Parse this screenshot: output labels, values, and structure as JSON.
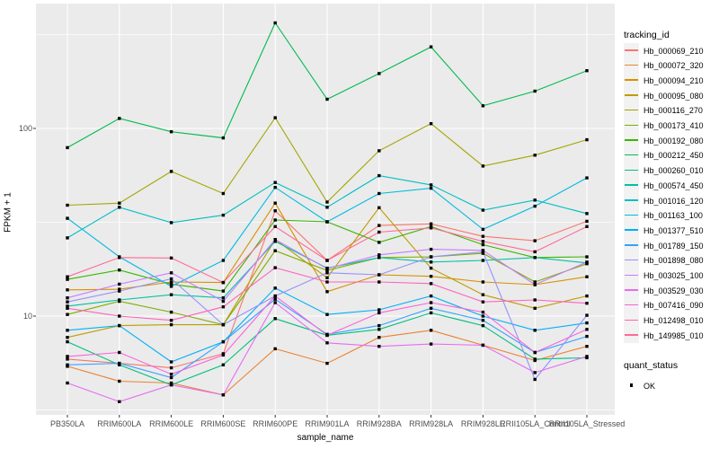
{
  "chart_data": {
    "type": "line",
    "xlabel": "sample_name",
    "ylabel": "FPKM + 1",
    "y_scale": "log10",
    "y_ticks": [
      {
        "value": 10,
        "label": "10"
      },
      {
        "value": 100,
        "label": "100"
      }
    ],
    "y_minor_ticks": [
      3.16,
      31.6,
      316
    ],
    "ylim": [
      3.0,
      460
    ],
    "grid": "on",
    "legend_position": "right",
    "panel_background": "#EBEBEB",
    "grid_color": "#FFFFFF",
    "marker": {
      "shape": "square",
      "color": "#000000"
    },
    "legend_tracking_title": "tracking_id",
    "legend_quant_title": "quant_status",
    "quant_items": [
      {
        "label": "OK"
      }
    ],
    "categories": [
      "PB350LA",
      "RRIM600LA",
      "RRIM600LE",
      "RRIM600SE",
      "RRIM600PE",
      "RRIM901LA",
      "RRIM928BA",
      "RRIM928LA",
      "RRIM928LE",
      "RRII105LA_Control",
      "RRII105LA_Stressed"
    ],
    "series": [
      {
        "name": "Hb_000069_210",
        "color": "#F8766D",
        "values": [
          5.9,
          5.6,
          5.3,
          6.3,
          36.4,
          19.8,
          30.4,
          31.0,
          26.6,
          25.2,
          32.0
        ]
      },
      {
        "name": "Hb_000072_320",
        "color": "#EA8331",
        "values": [
          5.4,
          4.5,
          4.4,
          3.8,
          6.7,
          5.6,
          7.7,
          8.4,
          7.0,
          5.8,
          6.9
        ]
      },
      {
        "name": "Hb_000094_210",
        "color": "#D89000",
        "values": [
          13.8,
          13.9,
          15.2,
          15.1,
          40.0,
          13.5,
          16.6,
          16.3,
          15.2,
          14.7,
          16.2
        ]
      },
      {
        "name": "Hb_000095_080",
        "color": "#C09B00",
        "values": [
          7.7,
          8.9,
          9.0,
          9.0,
          25.6,
          16.0,
          37.8,
          18.0,
          13.0,
          11.0,
          12.8
        ]
      },
      {
        "name": "Hb_000116_270",
        "color": "#A3A500",
        "values": [
          39.0,
          40.0,
          59.0,
          45.0,
          114.0,
          40.5,
          76.0,
          106.0,
          63.0,
          72.0,
          87.0
        ]
      },
      {
        "name": "Hb_000173_410",
        "color": "#7CAE00",
        "values": [
          10.2,
          12.0,
          10.5,
          9.0,
          22.3,
          17.5,
          20.5,
          20.7,
          21.6,
          15.2,
          19.0
        ]
      },
      {
        "name": "Hb_000192_080",
        "color": "#39B600",
        "values": [
          15.7,
          17.6,
          14.8,
          13.6,
          32.5,
          31.8,
          24.7,
          30.0,
          24.0,
          20.5,
          20.7
        ]
      },
      {
        "name": "Hb_000212_450",
        "color": "#00BB4E",
        "values": [
          79.0,
          113.0,
          96.0,
          89.0,
          365.0,
          143.0,
          196.0,
          272.0,
          132.0,
          158.0,
          203.0
        ]
      },
      {
        "name": "Hb_000260_010",
        "color": "#00BF7D",
        "values": [
          7.3,
          5.5,
          4.3,
          5.5,
          9.7,
          7.9,
          8.5,
          10.4,
          8.9,
          5.9,
          6.0
        ]
      },
      {
        "name": "Hb_000574_450",
        "color": "#00C1A3",
        "values": [
          11.3,
          12.2,
          13.0,
          12.5,
          25.0,
          18.0,
          20.5,
          19.4,
          19.8,
          20.5,
          19.2
        ]
      },
      {
        "name": "Hb_001016_120",
        "color": "#00BFC4",
        "values": [
          26.1,
          38.0,
          31.5,
          34.5,
          51.5,
          38.0,
          56.0,
          50.0,
          36.7,
          41.5,
          35.2
        ]
      },
      {
        "name": "Hb_001163_100",
        "color": "#00BAE0",
        "values": [
          33.2,
          20.7,
          14.4,
          19.8,
          48.5,
          31.8,
          45.0,
          48.0,
          29.0,
          38.5,
          54.5
        ]
      },
      {
        "name": "Hb_001377_510",
        "color": "#00B0F6",
        "values": [
          8.4,
          8.9,
          5.7,
          7.3,
          14.1,
          10.2,
          10.8,
          12.8,
          10.0,
          8.4,
          9.2
        ]
      },
      {
        "name": "Hb_001789_150",
        "color": "#35A2FF",
        "values": [
          5.5,
          5.6,
          4.7,
          7.3,
          12.3,
          8.0,
          8.9,
          11.0,
          9.5,
          6.4,
          7.8
        ]
      },
      {
        "name": "Hb_001898_080",
        "color": "#9590FF",
        "values": [
          11.9,
          13.6,
          15.8,
          9.0,
          12.8,
          17.0,
          16.6,
          20.7,
          22.0,
          4.6,
          10.1
        ]
      },
      {
        "name": "Hb_003025_100",
        "color": "#C77CFF",
        "values": [
          12.5,
          14.8,
          17.0,
          12.0,
          25.6,
          17.9,
          21.2,
          22.7,
          22.4,
          14.7,
          19.4
        ]
      },
      {
        "name": "Hb_003529_030",
        "color": "#E76BF3",
        "values": [
          4.4,
          3.5,
          4.3,
          3.8,
          11.8,
          7.2,
          6.9,
          7.1,
          7.0,
          5.0,
          6.1
        ]
      },
      {
        "name": "Hb_007416_090",
        "color": "#FA62DB",
        "values": [
          6.1,
          6.4,
          4.9,
          6.2,
          12.8,
          7.9,
          10.4,
          11.8,
          10.5,
          6.4,
          8.5
        ]
      },
      {
        "name": "Hb_012498_010",
        "color": "#FF62BC",
        "values": [
          11.0,
          10.0,
          9.5,
          11.2,
          18.1,
          15.2,
          15.2,
          14.9,
          11.9,
          12.2,
          11.7
        ]
      },
      {
        "name": "Hb_149985_010",
        "color": "#FF6A98",
        "values": [
          16.2,
          20.5,
          20.4,
          15.1,
          30.0,
          19.8,
          28.0,
          29.5,
          25.0,
          22.0,
          30.0
        ]
      }
    ]
  }
}
